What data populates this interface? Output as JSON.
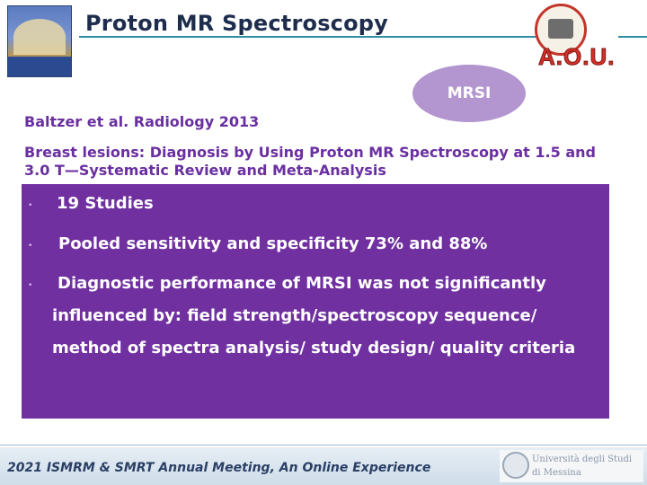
{
  "header": {
    "title": "Proton MR Spectroscopy",
    "right_logo_text": "A.O.U."
  },
  "badge": {
    "label": "MRSI"
  },
  "citation": "Baltzer et al. Radiology 2013",
  "paper_title": "Breast lesions: Diagnosis by Using Proton MR Spectroscopy at 1.5 and 3.0 T—Systematic Review and Meta-Analysis",
  "bullets": [
    {
      "marker": "•",
      "text": "19 Studies"
    },
    {
      "marker": "•",
      "text": "Pooled sensitivity and specificity 73% and 88%"
    },
    {
      "marker": "•",
      "text": "Diagnostic performance of MRSI was not significantly influenced by: field strength/spectroscopy sequence/ method of spectra analysis/ study design/ quality criteria"
    }
  ],
  "footer": {
    "text": "2021 ISMRM & SMRT Annual Meeting, An Online Experience",
    "uni_line1": "Università degli Studi",
    "uni_line2": "di Messina"
  },
  "colors": {
    "title": "#1f2d4d",
    "accent_purple": "#7030a0",
    "text_purple": "#6a2fa0",
    "badge": "#b395cf",
    "rule": "#2e8fa0"
  }
}
